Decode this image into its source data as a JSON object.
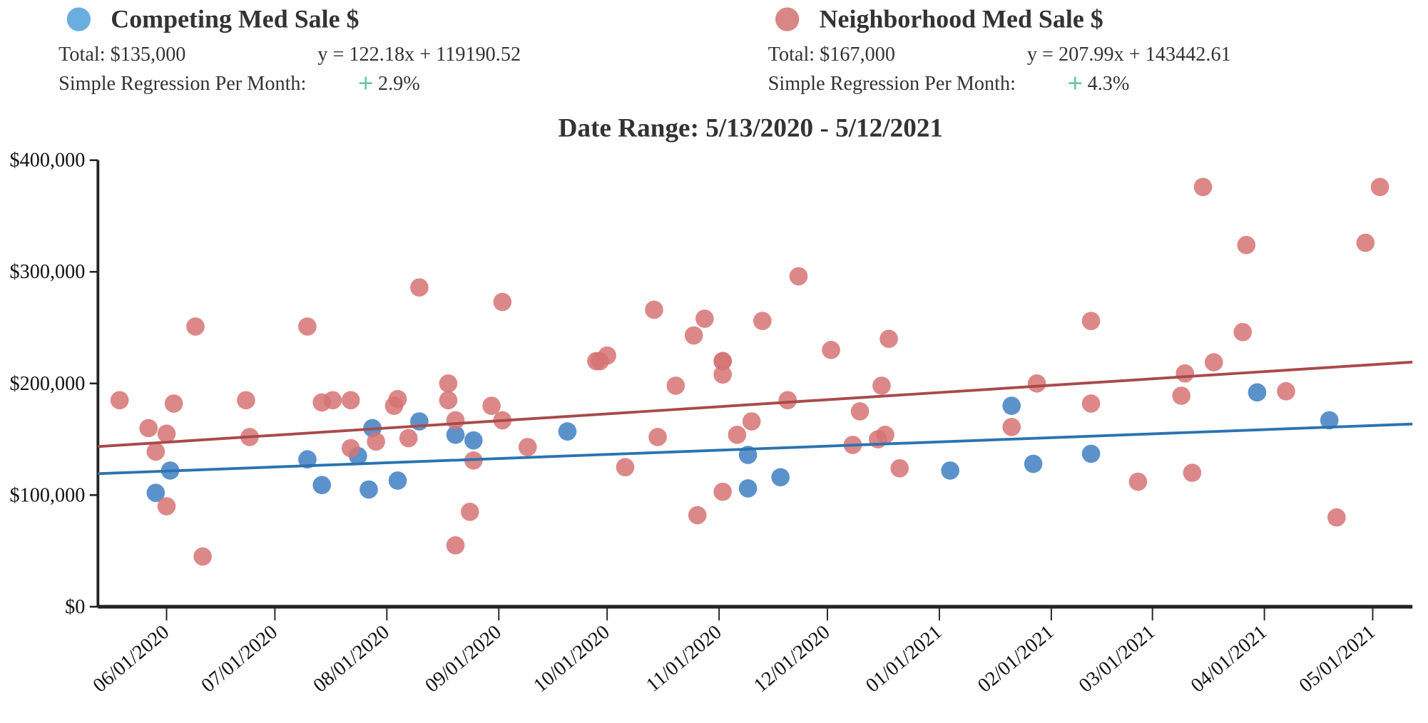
{
  "legend": [
    {
      "name": "Competing Med Sale $",
      "color": "#6aaee0",
      "total": "Total: $135,000",
      "equation": "y = 122.18x + 119190.52",
      "regression_label": "Simple Regression Per Month:",
      "regression_icon": "plus-icon",
      "regression_value": "2.9%"
    },
    {
      "name": "Neighborhood Med Sale $",
      "color": "#d98686",
      "total": "Total: $167,000",
      "equation": "y = 207.99x + 143442.61",
      "regression_label": "Simple Regression Per Month:",
      "regression_icon": "plus-icon",
      "regression_value": "4.3%"
    }
  ],
  "chart_data": {
    "type": "scatter",
    "title": "Date Range: 5/13/2020 - 5/12/2021",
    "xlim": [
      "2020-05-13",
      "2021-05-12"
    ],
    "ylim": [
      0,
      400000
    ],
    "y_ticks": [
      {
        "v": 0,
        "label": "$0"
      },
      {
        "v": 100000,
        "label": "$100,000"
      },
      {
        "v": 200000,
        "label": "$200,000"
      },
      {
        "v": 300000,
        "label": "$300,000"
      },
      {
        "v": 400000,
        "label": "$400,000"
      }
    ],
    "x_ticks": [
      {
        "d": "2020-06-01",
        "label": "06/01/2020"
      },
      {
        "d": "2020-07-01",
        "label": "07/01/2020"
      },
      {
        "d": "2020-08-01",
        "label": "08/01/2020"
      },
      {
        "d": "2020-09-01",
        "label": "09/01/2020"
      },
      {
        "d": "2020-10-01",
        "label": "10/01/2020"
      },
      {
        "d": "2020-11-01",
        "label": "11/01/2020"
      },
      {
        "d": "2020-12-01",
        "label": "12/01/2020"
      },
      {
        "d": "2021-01-01",
        "label": "01/01/2021"
      },
      {
        "d": "2021-02-01",
        "label": "02/01/2021"
      },
      {
        "d": "2021-03-01",
        "label": "03/01/2021"
      },
      {
        "d": "2021-04-01",
        "label": "04/01/2021"
      },
      {
        "d": "2021-05-01",
        "label": "05/01/2021"
      }
    ],
    "grid": false,
    "series": [
      {
        "name": "Competing Med Sale $",
        "color": "#3f7fc2",
        "line_color": "#2a74b0",
        "slope": 122.18,
        "intercept": 119190.52,
        "points": [
          [
            "2020-05-29",
            102000
          ],
          [
            "2020-06-02",
            122000
          ],
          [
            "2020-07-10",
            132000
          ],
          [
            "2020-07-14",
            109000
          ],
          [
            "2020-07-24",
            135000
          ],
          [
            "2020-07-27",
            105000
          ],
          [
            "2020-07-28",
            160000
          ],
          [
            "2020-08-04",
            113000
          ],
          [
            "2020-08-10",
            166000
          ],
          [
            "2020-08-20",
            154000
          ],
          [
            "2020-08-25",
            149000
          ],
          [
            "2020-09-20",
            157000
          ],
          [
            "2020-11-09",
            136000
          ],
          [
            "2020-11-09",
            106000
          ],
          [
            "2020-11-18",
            116000
          ],
          [
            "2021-01-04",
            122000
          ],
          [
            "2021-01-21",
            180000
          ],
          [
            "2021-01-27",
            128000
          ],
          [
            "2021-02-12",
            137000
          ],
          [
            "2021-03-30",
            192000
          ],
          [
            "2021-04-19",
            167000
          ]
        ]
      },
      {
        "name": "Neighborhood Med Sale $",
        "color": "#d67373",
        "line_color": "#a84a4a",
        "slope": 207.99,
        "intercept": 143442.61,
        "points": [
          [
            "2020-05-19",
            185000
          ],
          [
            "2020-05-27",
            160000
          ],
          [
            "2020-05-29",
            139000
          ],
          [
            "2020-06-01",
            155000
          ],
          [
            "2020-06-01",
            90000
          ],
          [
            "2020-06-03",
            182000
          ],
          [
            "2020-06-09",
            251000
          ],
          [
            "2020-06-11",
            45000
          ],
          [
            "2020-06-23",
            185000
          ],
          [
            "2020-06-24",
            152000
          ],
          [
            "2020-07-10",
            251000
          ],
          [
            "2020-07-14",
            183000
          ],
          [
            "2020-07-17",
            185000
          ],
          [
            "2020-07-22",
            185000
          ],
          [
            "2020-07-22",
            142000
          ],
          [
            "2020-07-29",
            148000
          ],
          [
            "2020-08-03",
            180000
          ],
          [
            "2020-08-04",
            186000
          ],
          [
            "2020-08-07",
            151000
          ],
          [
            "2020-08-10",
            286000
          ],
          [
            "2020-08-18",
            200000
          ],
          [
            "2020-08-18",
            185000
          ],
          [
            "2020-08-20",
            167000
          ],
          [
            "2020-08-20",
            55000
          ],
          [
            "2020-08-24",
            85000
          ],
          [
            "2020-08-25",
            131000
          ],
          [
            "2020-08-30",
            180000
          ],
          [
            "2020-09-02",
            273000
          ],
          [
            "2020-09-02",
            167000
          ],
          [
            "2020-09-09",
            143000
          ],
          [
            "2020-09-28",
            220000
          ],
          [
            "2020-09-29",
            220000
          ],
          [
            "2020-10-01",
            225000
          ],
          [
            "2020-10-06",
            125000
          ],
          [
            "2020-10-14",
            266000
          ],
          [
            "2020-10-15",
            152000
          ],
          [
            "2020-10-20",
            198000
          ],
          [
            "2020-10-25",
            243000
          ],
          [
            "2020-10-26",
            82000
          ],
          [
            "2020-10-28",
            258000
          ],
          [
            "2020-11-02",
            208000
          ],
          [
            "2020-11-02",
            220000
          ],
          [
            "2020-11-02",
            220000
          ],
          [
            "2020-11-02",
            103000
          ],
          [
            "2020-11-06",
            154000
          ],
          [
            "2020-11-10",
            166000
          ],
          [
            "2020-11-13",
            256000
          ],
          [
            "2020-11-20",
            185000
          ],
          [
            "2020-11-23",
            296000
          ],
          [
            "2020-12-02",
            230000
          ],
          [
            "2020-12-08",
            145000
          ],
          [
            "2020-12-10",
            175000
          ],
          [
            "2020-12-15",
            150000
          ],
          [
            "2020-12-16",
            198000
          ],
          [
            "2020-12-17",
            154000
          ],
          [
            "2020-12-18",
            240000
          ],
          [
            "2020-12-21",
            124000
          ],
          [
            "2021-01-21",
            161000
          ],
          [
            "2021-01-28",
            200000
          ],
          [
            "2021-02-12",
            256000
          ],
          [
            "2021-02-12",
            182000
          ],
          [
            "2021-02-25",
            112000
          ],
          [
            "2021-03-09",
            189000
          ],
          [
            "2021-03-10",
            209000
          ],
          [
            "2021-03-12",
            120000
          ],
          [
            "2021-03-15",
            376000
          ],
          [
            "2021-03-18",
            219000
          ],
          [
            "2021-03-26",
            246000
          ],
          [
            "2021-03-27",
            324000
          ],
          [
            "2021-04-07",
            193000
          ],
          [
            "2021-04-21",
            80000
          ],
          [
            "2021-04-29",
            326000
          ],
          [
            "2021-05-03",
            376000
          ]
        ]
      }
    ]
  }
}
